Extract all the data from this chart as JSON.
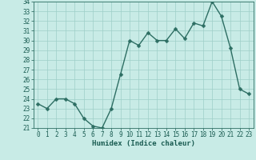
{
  "x": [
    0,
    1,
    2,
    3,
    4,
    5,
    6,
    7,
    8,
    9,
    10,
    11,
    12,
    13,
    14,
    15,
    16,
    17,
    18,
    19,
    20,
    21,
    22,
    23
  ],
  "y": [
    23.5,
    23.0,
    24.0,
    24.0,
    23.5,
    22.0,
    21.2,
    21.0,
    23.0,
    26.5,
    30.0,
    29.5,
    30.8,
    30.0,
    30.0,
    31.2,
    30.2,
    31.8,
    31.5,
    34.0,
    32.5,
    29.2,
    25.0,
    24.5
  ],
  "xlabel": "Humidex (Indice chaleur)",
  "ylim": [
    21,
    34
  ],
  "xlim": [
    -0.5,
    23.5
  ],
  "yticks": [
    21,
    22,
    23,
    24,
    25,
    26,
    27,
    28,
    29,
    30,
    31,
    32,
    33,
    34
  ],
  "xticks": [
    0,
    1,
    2,
    3,
    4,
    5,
    6,
    7,
    8,
    9,
    10,
    11,
    12,
    13,
    14,
    15,
    16,
    17,
    18,
    19,
    20,
    21,
    22,
    23
  ],
  "bg_color": "#c8ebe6",
  "line_color": "#2d6e63",
  "marker_color": "#2d6e63",
  "grid_color": "#9ecfc8",
  "tick_label_color": "#1a5c52",
  "xlabel_color": "#1a5c52",
  "axis_color": "#2d6e63",
  "line_width": 1.0,
  "marker_size": 2.5,
  "label_fontsize": 6.5,
  "tick_fontsize": 5.5
}
